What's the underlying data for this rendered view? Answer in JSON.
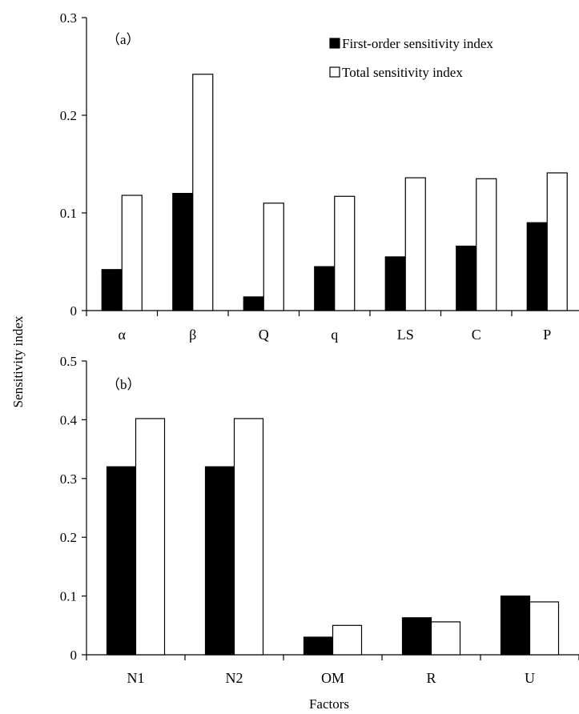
{
  "chart_data": [
    {
      "type": "bar",
      "panel_label": "（a）",
      "categories": [
        "α",
        "β",
        "Q",
        "q",
        "LS",
        "C",
        "P"
      ],
      "series": [
        {
          "name": "First-order sensitivity index",
          "color": "#000000",
          "values": [
            0.042,
            0.12,
            0.014,
            0.045,
            0.055,
            0.066,
            0.09
          ]
        },
        {
          "name": "Total sensitivity index",
          "color": "#ffffff",
          "values": [
            0.118,
            0.242,
            0.11,
            0.117,
            0.136,
            0.135,
            0.141
          ]
        }
      ],
      "ylim": [
        0,
        0.3
      ],
      "yticks": [
        "0",
        "0.1",
        "0.2",
        "0.3"
      ],
      "ytick_values": [
        0,
        0.1,
        0.2,
        0.3
      ],
      "legend_position": "top-right",
      "grid": false
    },
    {
      "type": "bar",
      "panel_label": "（b）",
      "categories": [
        "N1",
        "N2",
        "OM",
        "R",
        "U"
      ],
      "series": [
        {
          "name": "First-order sensitivity index",
          "color": "#000000",
          "values": [
            0.32,
            0.32,
            0.03,
            0.063,
            0.1
          ]
        },
        {
          "name": "Total sensitivity index",
          "color": "#ffffff",
          "values": [
            0.402,
            0.402,
            0.05,
            0.056,
            0.09
          ]
        }
      ],
      "ylim": [
        0,
        0.5
      ],
      "yticks": [
        "0",
        "0.1",
        "0.2",
        "0.3",
        "0.4",
        "0.5"
      ],
      "ytick_values": [
        0,
        0.1,
        0.2,
        0.3,
        0.4,
        0.5
      ],
      "grid": false
    }
  ],
  "ylabel": "Sensitivity  index",
  "xlabel": "Factors"
}
